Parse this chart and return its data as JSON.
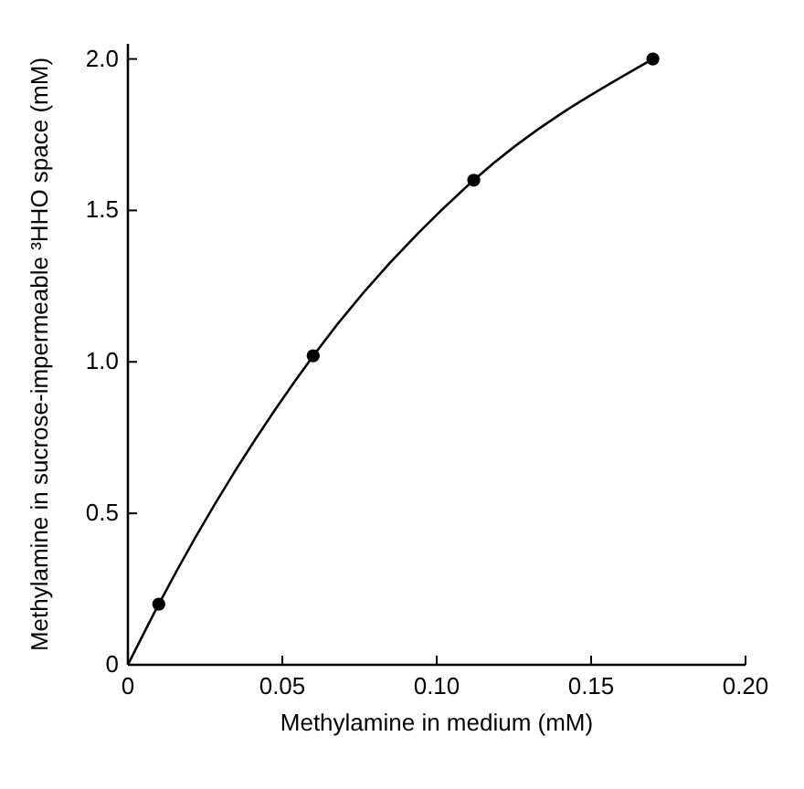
{
  "chart_data": {
    "type": "scatter",
    "xlabel": "Methylamine in medium (mM)",
    "ylabel": "Methylamine in sucrose-impermeable ³HHO space (mM)",
    "xlim": [
      0,
      0.2
    ],
    "ylim": [
      0,
      2.05
    ],
    "xticks": [
      0,
      0.05,
      {
        "value": 0.1,
        "label": "0.10"
      },
      0.15,
      {
        "value": 0.2,
        "label": "0.20"
      }
    ],
    "yticks": [
      0,
      0.5,
      {
        "value": 1,
        "label": "1.0"
      },
      1.5,
      {
        "value": 2,
        "label": "2.0"
      }
    ],
    "marker": "circle",
    "grid": false,
    "series": [
      {
        "type": "line",
        "color": "#000000",
        "marker": "none",
        "x": [
          0,
          0.01,
          0.06,
          0.112,
          0.17
        ],
        "values": [
          0,
          0.2,
          1.02,
          1.6,
          2.0
        ]
      },
      {
        "color": "#000000",
        "x": [
          0.01,
          0.06,
          0.112,
          0.17
        ],
        "values": [
          0.2,
          1.02,
          1.6,
          2.0
        ]
      }
    ]
  }
}
